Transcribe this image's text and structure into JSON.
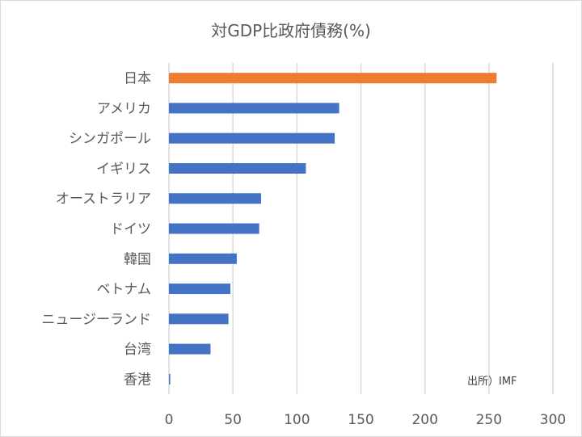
{
  "chart_data": {
    "type": "bar",
    "orientation": "horizontal",
    "title": "対GDP比政府債務(%)",
    "categories": [
      "日本",
      "アメリカ",
      "シンガポール",
      "イギリス",
      "オーストラリア",
      "ドイツ",
      "韓国",
      "ベトナム",
      "ニュージーランド",
      "台湾",
      "香港"
    ],
    "values": [
      256,
      133,
      129.5,
      107,
      72,
      70.5,
      53,
      48,
      46.5,
      32.5,
      1
    ],
    "colors": [
      "#ED7D31",
      "#4472C4",
      "#4472C4",
      "#4472C4",
      "#4472C4",
      "#4472C4",
      "#4472C4",
      "#4472C4",
      "#4472C4",
      "#4472C4",
      "#4472C4"
    ],
    "xlim": [
      0,
      300
    ],
    "xticks": [
      "0",
      "50",
      "100",
      "150",
      "200",
      "250",
      "300"
    ],
    "grid": "vertical",
    "annotation": "出所）IMF"
  }
}
